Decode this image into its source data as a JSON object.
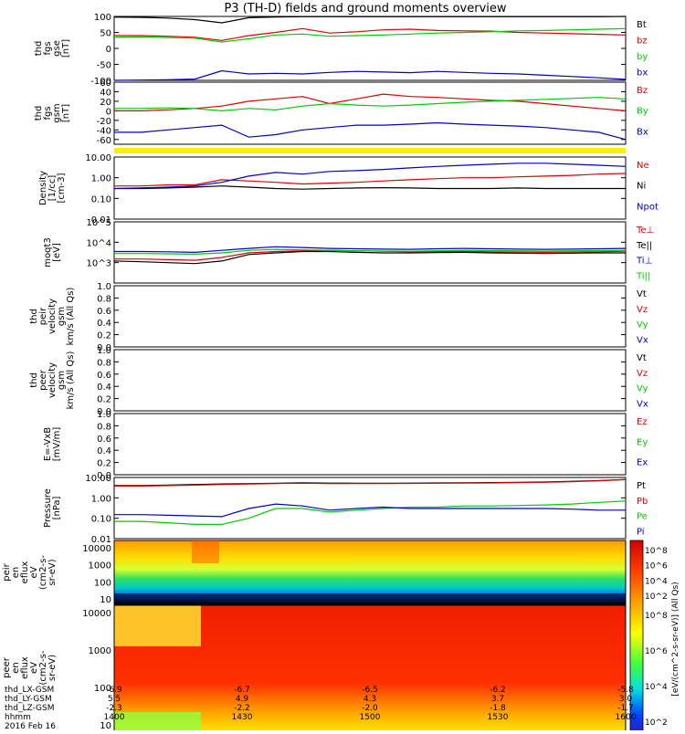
{
  "title": "P3 (TH-D) fields and ground moments overview",
  "colors": {
    "black": "#000000",
    "red": "#e00000",
    "green": "#00cc00",
    "blue": "#0000cc",
    "yellow": "#ffee00"
  },
  "chart_data": [
    {
      "type": "line",
      "ylabel": [
        "thd",
        "fgs",
        "gse",
        "[nT]"
      ],
      "ylim": [
        -100,
        100
      ],
      "yticks": [
        "100",
        "50",
        "0",
        "-50",
        "-100"
      ],
      "tick_values": [
        100,
        50,
        0,
        -50,
        -100
      ],
      "series": [
        {
          "name": "Bt",
          "color": "black",
          "values": [
            98,
            97,
            95,
            90,
            80,
            96,
            98,
            99,
            99,
            99,
            99,
            99,
            99,
            99,
            99,
            99,
            99,
            99,
            99,
            100
          ]
        },
        {
          "name": "bz",
          "color": "red",
          "values": [
            40,
            40,
            38,
            35,
            25,
            40,
            50,
            62,
            48,
            52,
            58,
            60,
            56,
            55,
            54,
            50,
            48,
            46,
            44,
            42
          ]
        },
        {
          "name": "by",
          "color": "green",
          "values": [
            35,
            36,
            34,
            32,
            20,
            30,
            42,
            45,
            38,
            40,
            42,
            45,
            48,
            50,
            52,
            55,
            56,
            58,
            60,
            62
          ]
        },
        {
          "name": "bx",
          "color": "blue",
          "values": [
            -100,
            -99,
            -98,
            -96,
            -70,
            -80,
            -78,
            -80,
            -75,
            -72,
            -74,
            -76,
            -72,
            -75,
            -78,
            -80,
            -84,
            -88,
            -92,
            -97
          ]
        }
      ]
    },
    {
      "type": "line",
      "ylabel": [
        "thd",
        "fgs",
        "gsm",
        "[nT]"
      ],
      "ylim": [
        -70,
        60
      ],
      "yticks": [
        "60",
        "40",
        "20",
        "0",
        "-20",
        "-40",
        "-60"
      ],
      "tick_values": [
        60,
        40,
        20,
        0,
        -20,
        -40,
        -60
      ],
      "series": [
        {
          "name": "Bz",
          "color": "red",
          "values": [
            0,
            0,
            2,
            5,
            10,
            20,
            25,
            30,
            15,
            25,
            35,
            30,
            28,
            25,
            22,
            20,
            15,
            10,
            5,
            0
          ]
        },
        {
          "name": "By",
          "color": "green",
          "values": [
            5,
            5,
            6,
            5,
            0,
            5,
            2,
            10,
            15,
            12,
            10,
            12,
            15,
            18,
            20,
            22,
            24,
            26,
            28,
            25
          ]
        },
        {
          "name": "Bx",
          "color": "blue",
          "values": [
            -45,
            -45,
            -40,
            -35,
            -30,
            -55,
            -50,
            -40,
            -35,
            -30,
            -30,
            -28,
            -25,
            -28,
            -30,
            -32,
            -35,
            -40,
            -45,
            -60
          ]
        }
      ]
    },
    {
      "type": "line",
      "scale": "log",
      "ylabel": [
        "Density",
        "[1/cc]",
        "[cm-3]"
      ],
      "ylim": [
        0.01,
        10
      ],
      "yticks": [
        "10.00",
        "1.00",
        "0.10",
        "0.01"
      ],
      "tick_values": [
        10,
        1,
        0.1,
        0.01
      ],
      "series": [
        {
          "name": "Ne",
          "color": "red",
          "values": [
            0.4,
            0.4,
            0.45,
            0.45,
            0.8,
            0.7,
            0.6,
            0.5,
            0.55,
            0.6,
            0.7,
            0.8,
            0.9,
            1,
            1,
            1.1,
            1.2,
            1.3,
            1.5,
            1.6
          ]
        },
        {
          "name": "Ni",
          "color": "black",
          "values": [
            0.3,
            0.3,
            0.32,
            0.35,
            0.4,
            0.35,
            0.3,
            0.28,
            0.3,
            0.32,
            0.33,
            0.32,
            0.3,
            0.3,
            0.3,
            0.32,
            0.3,
            0.3,
            0.3,
            0.3
          ]
        },
        {
          "name": "Npot",
          "color": "blue",
          "values": [
            0.3,
            0.32,
            0.35,
            0.4,
            0.6,
            1.2,
            1.8,
            1.5,
            2,
            2.2,
            2.5,
            3,
            3.5,
            4,
            4.5,
            5,
            5,
            4.5,
            4,
            3.5
          ]
        }
      ]
    },
    {
      "type": "line",
      "scale": "log",
      "ylabel": [
        "moqt3",
        "[eV]"
      ],
      "ylim": [
        100,
        100000
      ],
      "yticks": [
        "10^5",
        "10^4",
        "10^3"
      ],
      "tick_values": [
        100000,
        10000,
        1000
      ],
      "series": [
        {
          "name": "Te⊥",
          "color": "red",
          "values": [
            1500,
            1500,
            1400,
            1300,
            1800,
            3000,
            3500,
            3800,
            4000,
            3800,
            3600,
            3400,
            3500,
            3600,
            3400,
            3300,
            3200,
            3300,
            3400,
            3600
          ]
        },
        {
          "name": "Te||",
          "color": "black",
          "values": [
            1200,
            1100,
            1000,
            900,
            1200,
            2500,
            3000,
            3500,
            3500,
            3200,
            3000,
            3000,
            3100,
            3200,
            3000,
            2900,
            2800,
            2900,
            3000,
            3000
          ]
        },
        {
          "name": "Ti⊥",
          "color": "blue",
          "values": [
            3500,
            3500,
            3400,
            3200,
            4000,
            5000,
            6000,
            5500,
            5000,
            4800,
            4600,
            4500,
            4800,
            5000,
            4800,
            4600,
            4500,
            4600,
            4800,
            5000
          ]
        },
        {
          "name": "Ti||",
          "color": "green",
          "values": [
            2800,
            2800,
            2700,
            2600,
            3000,
            4000,
            4500,
            4200,
            4000,
            3800,
            3700,
            3600,
            3800,
            4000,
            3900,
            3800,
            3700,
            3800,
            3900,
            4000
          ]
        }
      ]
    },
    {
      "type": "line",
      "ylabel": [
        "thd",
        "peir",
        "velocity",
        "gsm",
        "km/s (All Qs)"
      ],
      "ylim": [
        0,
        1
      ],
      "yticks": [
        "1.0",
        "0.8",
        "0.6",
        "0.4",
        "0.2",
        "0.0"
      ],
      "tick_values": [
        1,
        0.8,
        0.6,
        0.4,
        0.2,
        0
      ],
      "series": [
        {
          "name": "Vt",
          "color": "black",
          "values": []
        },
        {
          "name": "Vz",
          "color": "red",
          "values": []
        },
        {
          "name": "Vy",
          "color": "green",
          "values": []
        },
        {
          "name": "Vx",
          "color": "blue",
          "values": []
        }
      ]
    },
    {
      "type": "line",
      "ylabel": [
        "thd",
        "peer",
        "velocity",
        "gsm",
        "km/s (All Qs)"
      ],
      "ylim": [
        0,
        1
      ],
      "yticks": [
        "1.0",
        "0.8",
        "0.6",
        "0.4",
        "0.2",
        "0.0"
      ],
      "tick_values": [
        1,
        0.8,
        0.6,
        0.4,
        0.2,
        0
      ],
      "series": [
        {
          "name": "Vt",
          "color": "black",
          "values": []
        },
        {
          "name": "Vz",
          "color": "red",
          "values": []
        },
        {
          "name": "Vy",
          "color": "green",
          "values": []
        },
        {
          "name": "Vx",
          "color": "blue",
          "values": []
        }
      ]
    },
    {
      "type": "line",
      "ylabel": [
        "E=-VxB",
        "[mV/m]"
      ],
      "ylim": [
        0,
        1
      ],
      "yticks": [
        "1.0",
        "0.8",
        "0.6",
        "0.4",
        "0.2",
        "0.0"
      ],
      "tick_values": [
        1,
        0.8,
        0.6,
        0.4,
        0.2,
        0
      ],
      "series": [
        {
          "name": "Ez",
          "color": "red",
          "values": []
        },
        {
          "name": "Ey",
          "color": "green",
          "values": []
        },
        {
          "name": "Ex",
          "color": "blue",
          "values": []
        }
      ]
    },
    {
      "type": "line",
      "scale": "log",
      "ylabel": [
        "Pressure",
        "[nPa]"
      ],
      "ylim": [
        0.01,
        10
      ],
      "yticks": [
        "10.00",
        "1.00",
        "0.10",
        "0.01"
      ],
      "tick_values": [
        10,
        1,
        0.1,
        0.01
      ],
      "series": [
        {
          "name": "Pt",
          "color": "black",
          "values": [
            4,
            4,
            4.2,
            4.5,
            4.8,
            5,
            5.2,
            5.5,
            5.3,
            5.2,
            5.2,
            5.3,
            5.4,
            5.5,
            5.6,
            5.8,
            6,
            6.5,
            7,
            8
          ]
        },
        {
          "name": "Pb",
          "color": "red",
          "values": [
            3.8,
            3.8,
            4,
            4.2,
            4.5,
            4.8,
            5,
            5.2,
            5,
            5,
            5,
            5.1,
            5.2,
            5.3,
            5.4,
            5.6,
            5.8,
            6.2,
            6.8,
            7.8
          ]
        },
        {
          "name": "Pe",
          "color": "green",
          "values": [
            0.07,
            0.07,
            0.06,
            0.05,
            0.05,
            0.1,
            0.3,
            0.3,
            0.2,
            0.25,
            0.3,
            0.35,
            0.35,
            0.4,
            0.4,
            0.42,
            0.45,
            0.5,
            0.6,
            0.7
          ]
        },
        {
          "name": "Pi",
          "color": "blue",
          "values": [
            0.15,
            0.15,
            0.14,
            0.13,
            0.12,
            0.3,
            0.5,
            0.4,
            0.25,
            0.3,
            0.35,
            0.3,
            0.3,
            0.3,
            0.3,
            0.3,
            0.3,
            0.28,
            0.25,
            0.25
          ]
        }
      ]
    },
    {
      "type": "heatmap",
      "ylabel": [
        "thd",
        "peir",
        "en",
        "eflux",
        "eV",
        "(cm2-s-",
        "sr-eV)"
      ],
      "yticks": [
        "10000",
        "1000",
        "100",
        "10"
      ],
      "colorbar": [
        "10^8",
        "10^6",
        "10^4",
        "10^2"
      ]
    },
    {
      "type": "heatmap",
      "ylabel": [
        "thd",
        "peer",
        "en",
        "eflux",
        "eV",
        "(cm2-s-",
        "sr-eV)"
      ],
      "yticks": [
        "10000",
        "1000",
        "100",
        "10"
      ],
      "colorbar": [
        "10^8",
        "10^6",
        "10^4",
        "10^2"
      ]
    }
  ],
  "colorbar_label": "[eV/(cm^2-s-sr-eV)] (All Qs)",
  "xaxis": {
    "rows": [
      {
        "label": "thd_LX-GSM",
        "values": [
          "-6.9",
          "-6.7",
          "-6.5",
          "-6.2",
          "-5.8"
        ]
      },
      {
        "label": "thd_LY-GSM",
        "values": [
          "5.5",
          "4.9",
          "4.3",
          "3.7",
          "3.0"
        ]
      },
      {
        "label": "thd_LZ-GSM",
        "values": [
          "-2.3",
          "-2.2",
          "-2.0",
          "-1.8",
          "-1.7"
        ]
      },
      {
        "label": "hhmm",
        "values": [
          "1400",
          "1430",
          "1500",
          "1530",
          "1600"
        ]
      }
    ],
    "date": "2016 Feb 16"
  }
}
